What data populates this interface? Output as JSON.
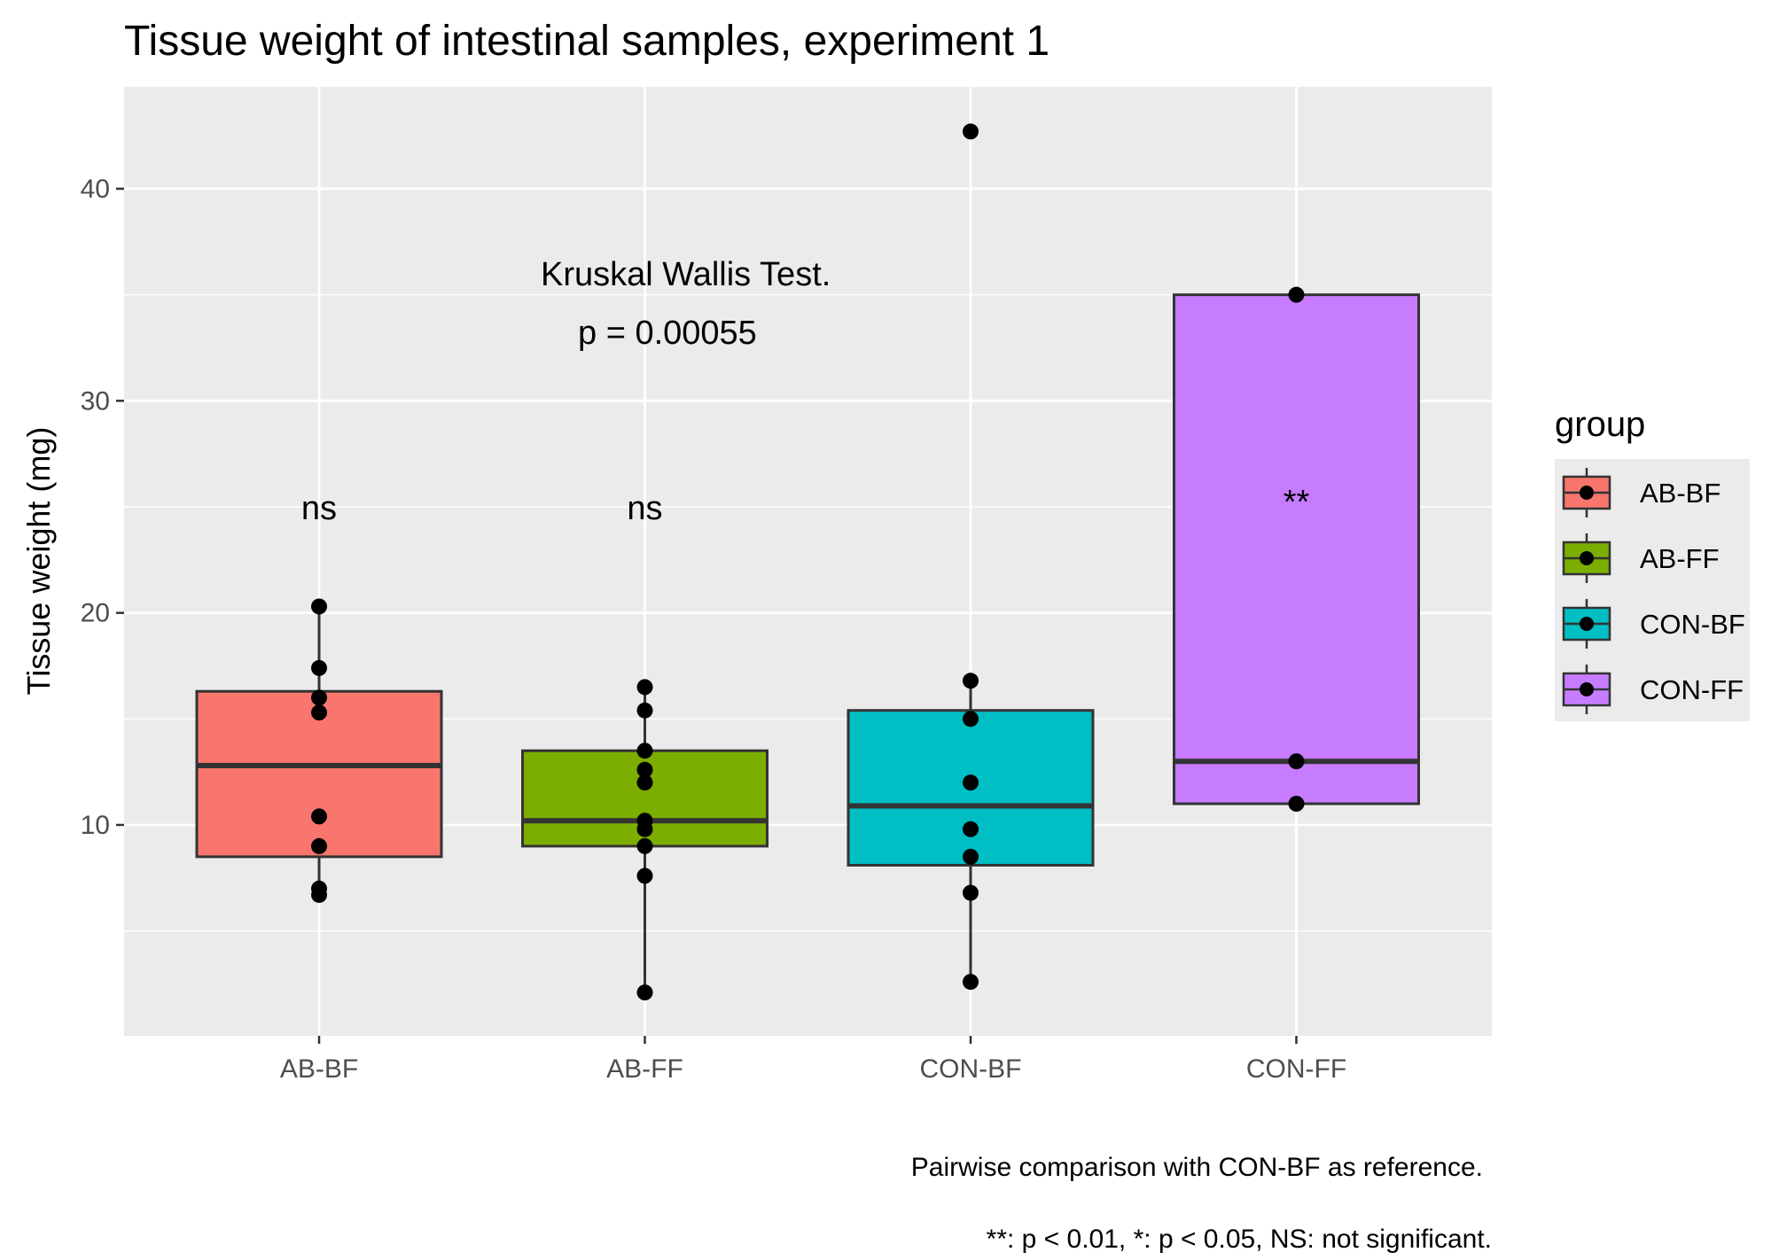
{
  "chart_data": {
    "type": "box",
    "title": "Tissue weight of intestinal samples, experiment 1",
    "xlabel": "",
    "ylabel": "Tissue weight (mg)",
    "ylim": [
      0,
      44.5
    ],
    "yticks": [
      10,
      20,
      30,
      40
    ],
    "categories": [
      "AB-BF",
      "AB-FF",
      "CON-BF",
      "CON-FF"
    ],
    "colors": {
      "AB-BF": "#F8766D",
      "AB-FF": "#7CAE00",
      "CON-BF": "#00BFC4",
      "CON-FF": "#C77CFF"
    },
    "boxes": [
      {
        "group": "AB-BF",
        "min": 6.7,
        "q1": 8.5,
        "median": 12.8,
        "q3": 16.3,
        "max": 20.3,
        "points": [
          20.3,
          17.4,
          16.0,
          15.3,
          10.4,
          9.0,
          7.0,
          6.7
        ]
      },
      {
        "group": "AB-FF",
        "min": 2.1,
        "q1": 9.0,
        "median": 10.2,
        "q3": 13.5,
        "max": 16.5,
        "points": [
          16.5,
          15.4,
          13.5,
          12.6,
          12.0,
          10.2,
          9.8,
          9.0,
          7.6,
          2.1
        ]
      },
      {
        "group": "CON-BF",
        "min": 2.6,
        "q1": 8.1,
        "median": 10.9,
        "q3": 15.4,
        "max": 16.8,
        "points": [
          42.7,
          16.8,
          15.0,
          12.0,
          9.8,
          8.5,
          6.8,
          2.6
        ]
      },
      {
        "group": "CON-FF",
        "min": 11.0,
        "q1": 11.0,
        "median": 13.0,
        "q3": 35.0,
        "max": 35.0,
        "points": [
          35.0,
          13.0,
          11.0
        ]
      }
    ],
    "significance": [
      {
        "group": "AB-BF",
        "label": "ns",
        "y": 25.0
      },
      {
        "group": "AB-FF",
        "label": "ns",
        "y": 25.0
      },
      {
        "group": "CON-FF",
        "label": "**",
        "y": 25.3
      }
    ],
    "test_annotation": {
      "line1": "Kruskal Wallis Test.",
      "line2": "p = 0.00055"
    },
    "caption": {
      "line1": "Pairwise comparison with CON-BF as reference.",
      "line2": "**: p < 0.01, *: p < 0.05, NS: not significant."
    },
    "legend": {
      "title": "group",
      "position": "right",
      "items": [
        "AB-BF",
        "AB-FF",
        "CON-BF",
        "CON-FF"
      ]
    },
    "grid": true
  }
}
